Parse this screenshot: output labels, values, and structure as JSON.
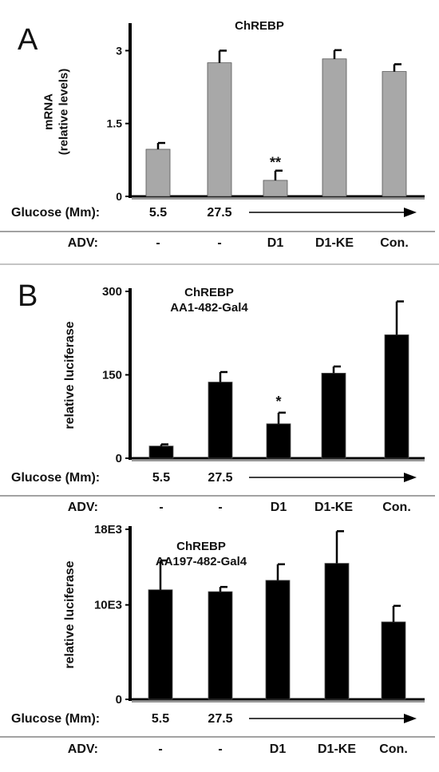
{
  "panels": [
    {
      "letter": "A",
      "chart_data": {
        "type": "bar",
        "title": "ChREBP",
        "ylabel": "mRNA\n(relative levels)",
        "categories": [
          "1",
          "2",
          "3",
          "4",
          "5"
        ],
        "values": [
          0.97,
          2.75,
          0.33,
          2.83,
          2.57
        ],
        "errors": [
          0.13,
          0.25,
          0.2,
          0.18,
          0.15
        ],
        "ylim": [
          0,
          3.5
        ],
        "yticks": [
          0,
          1.5,
          3
        ],
        "ytick_labels": [
          "0",
          "1.5",
          "3"
        ],
        "bar_color": "#a8a8a8",
        "annotations": [
          {
            "bar": 2,
            "text": "**"
          }
        ],
        "glucose": {
          "label": "Glucose (Mm):",
          "values": [
            "5.5",
            "27.5"
          ]
        },
        "adv": {
          "label": "ADV:",
          "values": [
            "-",
            "-",
            "D1",
            "D1-KE",
            "Con."
          ]
        }
      }
    },
    {
      "letter": "B",
      "chart_data": {
        "type": "bar",
        "title": "ChREBP\nAA1-482-Gal4",
        "ylabel": "relative luciferase",
        "categories": [
          "1",
          "2",
          "3",
          "4",
          "5"
        ],
        "values": [
          22,
          137,
          62,
          153,
          222
        ],
        "errors": [
          3,
          18,
          20,
          12,
          60
        ],
        "ylim": [
          0,
          300
        ],
        "yticks": [
          0,
          150,
          300
        ],
        "ytick_labels": [
          "0",
          "150",
          "300"
        ],
        "bar_color": "#000000",
        "annotations": [
          {
            "bar": 2,
            "text": "*"
          }
        ],
        "glucose": {
          "label": "Glucose (Mm):",
          "values": [
            "5.5",
            "27.5"
          ]
        },
        "adv": {
          "label": "ADV:",
          "values": [
            "-",
            "-",
            "D1",
            "D1-KE",
            "Con."
          ]
        }
      }
    },
    {
      "letter": "",
      "chart_data": {
        "type": "bar",
        "title": "ChREBP\nAA197-482-Gal4",
        "ylabel": "relative luciferase",
        "categories": [
          "1",
          "2",
          "3",
          "4",
          "5"
        ],
        "values": [
          11600,
          11400,
          12600,
          14400,
          8200
        ],
        "errors": [
          3100,
          500,
          1700,
          3400,
          1700
        ],
        "ylim": [
          0,
          18000
        ],
        "yticks": [
          0,
          10000,
          18000
        ],
        "ytick_labels": [
          "0",
          "10E3",
          "18E3"
        ],
        "bar_color": "#000000",
        "annotations": [],
        "glucose": {
          "label": "Glucose (Mm):",
          "values": [
            "5.5",
            "27.5"
          ]
        },
        "adv": {
          "label": "ADV:",
          "values": [
            "-",
            "-",
            "D1",
            "D1-KE",
            "Con."
          ]
        }
      }
    }
  ]
}
